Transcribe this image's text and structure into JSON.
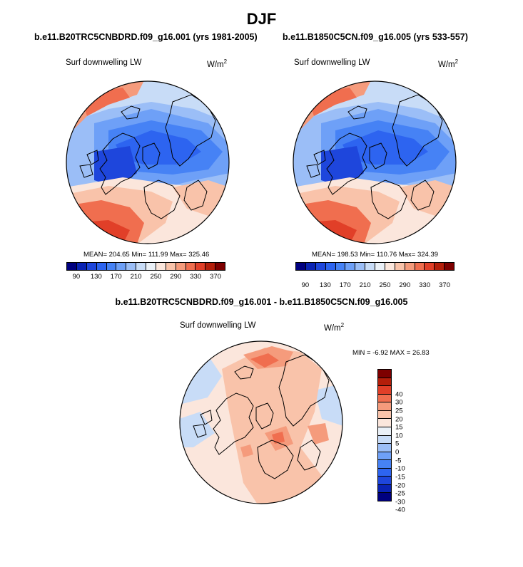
{
  "title": "DJF",
  "panels": [
    {
      "case": "b.e11.B20TRC5CNBDRD.f09_g16.001 (yrs 1981-2005)",
      "variable": "Surf downwelling LW",
      "units": "W/m",
      "units_sup": "2",
      "stats": "MEAN= 204.65  Min= 111.99  Max= 325.46"
    },
    {
      "case": "b.e11.B1850C5CN.f09_g16.005 (yrs 533-557)",
      "variable": "Surf downwelling LW",
      "units": "W/m",
      "units_sup": "2",
      "stats": "MEAN= 198.53  Min= 110.76  Max= 324.39"
    },
    {
      "case": "b.e11.B20TRC5CNBDRD.f09_g16.001 - b.e11.B1850C5CN.f09_g16.005",
      "variable": "Surf downwelling LW",
      "units": "W/m",
      "units_sup": "2",
      "stats": "MIN =  -6.92 MAX =  26.83"
    }
  ],
  "chart_data": [
    {
      "type": "heatmap",
      "projection": "polar stereographic (north pole)",
      "variable": "Surf downwelling LW",
      "units": "W/m^2",
      "mean": 204.65,
      "min": 111.99,
      "max": 325.46,
      "colorbar": {
        "orientation": "horizontal",
        "levels": [
          90,
          110,
          130,
          150,
          170,
          190,
          210,
          230,
          250,
          270,
          290,
          310,
          330,
          350,
          370
        ],
        "labels": [
          "90",
          "130",
          "170",
          "210",
          "250",
          "290",
          "330",
          "370"
        ],
        "colors": [
          "#00007f",
          "#0a23b4",
          "#1e46dc",
          "#2d64f0",
          "#4682f5",
          "#6ea0f7",
          "#9bbef7",
          "#c8dcf7",
          "#eaf0f7",
          "#fbe6dc",
          "#f9c3aa",
          "#f59b7c",
          "#f06e4f",
          "#e13f28",
          "#b41e0a",
          "#7d0000"
        ]
      }
    },
    {
      "type": "heatmap",
      "projection": "polar stereographic (north pole)",
      "variable": "Surf downwelling LW",
      "units": "W/m^2",
      "mean": 198.53,
      "min": 110.76,
      "max": 324.39,
      "colorbar": {
        "orientation": "horizontal",
        "levels": [
          90,
          110,
          130,
          150,
          170,
          190,
          210,
          230,
          250,
          270,
          290,
          310,
          330,
          350,
          370
        ],
        "labels": [
          "90",
          "130",
          "170",
          "210",
          "250",
          "290",
          "330",
          "370"
        ],
        "colors": [
          "#00007f",
          "#0a23b4",
          "#1e46dc",
          "#2d64f0",
          "#4682f5",
          "#6ea0f7",
          "#9bbef7",
          "#c8dcf7",
          "#eaf0f7",
          "#fbe6dc",
          "#f9c3aa",
          "#f59b7c",
          "#f06e4f",
          "#e13f28",
          "#b41e0a",
          "#7d0000"
        ]
      }
    },
    {
      "type": "heatmap",
      "projection": "polar stereographic (north pole)",
      "variable": "Surf downwelling LW difference",
      "units": "W/m^2",
      "min": -6.92,
      "max": 26.83,
      "colorbar": {
        "orientation": "vertical",
        "levels": [
          -40,
          -30,
          -25,
          -20,
          -15,
          -10,
          -5,
          0,
          5,
          10,
          15,
          20,
          25,
          30,
          40
        ],
        "labels": [
          "40",
          "30",
          "25",
          "20",
          "15",
          "10",
          "5",
          "0",
          "-5",
          "-10",
          "-15",
          "-20",
          "-25",
          "-30",
          "-40"
        ],
        "colors": [
          "#00007f",
          "#0a23b4",
          "#1e46dc",
          "#2d64f0",
          "#4682f5",
          "#6ea0f7",
          "#9bbef7",
          "#c8dcf7",
          "#eaf0f7",
          "#fbe6dc",
          "#f9c3aa",
          "#f59b7c",
          "#f06e4f",
          "#e13f28",
          "#b41e0a",
          "#7d0000"
        ]
      }
    }
  ]
}
